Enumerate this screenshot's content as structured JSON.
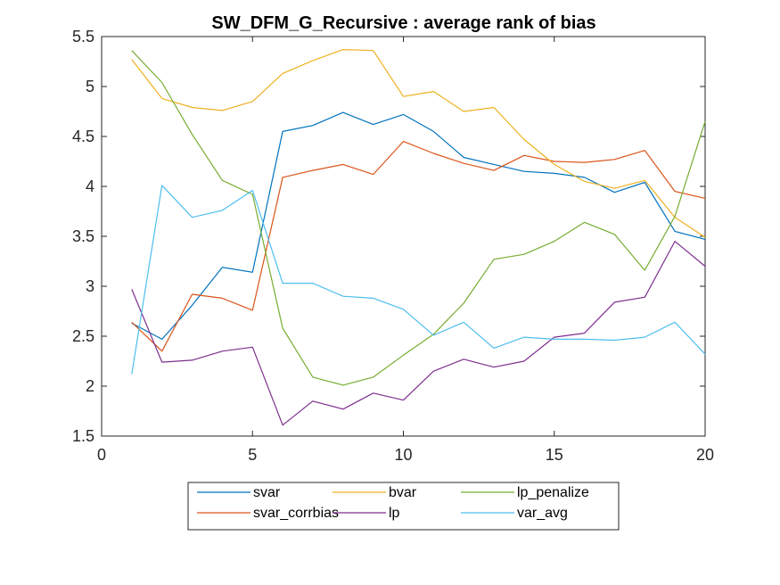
{
  "chart_data": {
    "type": "line",
    "title": "SW_DFM_G_Recursive : average rank of bias",
    "xlabel": "",
    "ylabel": "",
    "xlim": [
      0,
      20
    ],
    "ylim": [
      1.5,
      5.5
    ],
    "xticks": [
      0,
      5,
      10,
      15,
      20
    ],
    "xtick_labels": [
      "0",
      "5",
      "10",
      "15",
      "20"
    ],
    "yticks": [
      1.5,
      2,
      2.5,
      3,
      3.5,
      4,
      4.5,
      5,
      5.5
    ],
    "ytick_labels": [
      "1.5",
      "2",
      "2.5",
      "3",
      "3.5",
      "4",
      "4.5",
      "5",
      "5.5"
    ],
    "grid": false,
    "legend_position": "bottom-outside",
    "x": [
      1,
      2,
      3,
      4,
      5,
      6,
      7,
      8,
      9,
      10,
      11,
      12,
      13,
      14,
      15,
      16,
      17,
      18,
      19,
      20
    ],
    "series": [
      {
        "name": "svar",
        "color": "#0072BD",
        "values": [
          2.63,
          2.47,
          2.81,
          3.19,
          3.14,
          4.55,
          4.61,
          4.74,
          4.62,
          4.72,
          4.55,
          4.29,
          4.22,
          4.15,
          4.13,
          4.09,
          3.94,
          4.04,
          3.55,
          3.47
        ]
      },
      {
        "name": "svar_corrbias",
        "color": "#D95319",
        "values": [
          2.64,
          2.35,
          2.92,
          2.88,
          2.76,
          4.09,
          4.16,
          4.22,
          4.12,
          4.45,
          4.33,
          4.23,
          4.16,
          4.31,
          4.25,
          4.24,
          4.27,
          4.36,
          3.95,
          3.88
        ]
      },
      {
        "name": "bvar",
        "color": "#EDB120",
        "values": [
          5.27,
          4.88,
          4.79,
          4.76,
          4.85,
          5.13,
          5.26,
          5.37,
          5.36,
          4.9,
          4.95,
          4.75,
          4.79,
          4.47,
          4.22,
          4.05,
          3.98,
          4.06,
          3.69,
          3.49
        ]
      },
      {
        "name": "lp",
        "color": "#7E2F8E",
        "values": [
          2.97,
          2.24,
          2.26,
          2.35,
          2.39,
          1.61,
          1.85,
          1.77,
          1.93,
          1.86,
          2.15,
          2.27,
          2.19,
          2.25,
          2.49,
          2.53,
          2.84,
          2.89,
          3.45,
          3.2
        ]
      },
      {
        "name": "lp_penalize",
        "color": "#77AC30",
        "values": [
          5.36,
          5.04,
          4.52,
          4.06,
          3.92,
          2.58,
          2.09,
          2.01,
          2.09,
          2.31,
          2.52,
          2.83,
          3.27,
          3.32,
          3.45,
          3.64,
          3.52,
          3.16,
          3.7,
          4.65
        ]
      },
      {
        "name": "var_avg",
        "color": "#4DBEEE",
        "values": [
          2.12,
          4.01,
          3.69,
          3.76,
          3.96,
          3.03,
          3.03,
          2.9,
          2.88,
          2.77,
          2.51,
          2.64,
          2.38,
          2.49,
          2.47,
          2.47,
          2.46,
          2.49,
          2.64,
          2.32
        ]
      }
    ],
    "legend_order": [
      "svar",
      "bvar",
      "lp_penalize",
      "svar_corrbias",
      "lp",
      "var_avg"
    ]
  }
}
